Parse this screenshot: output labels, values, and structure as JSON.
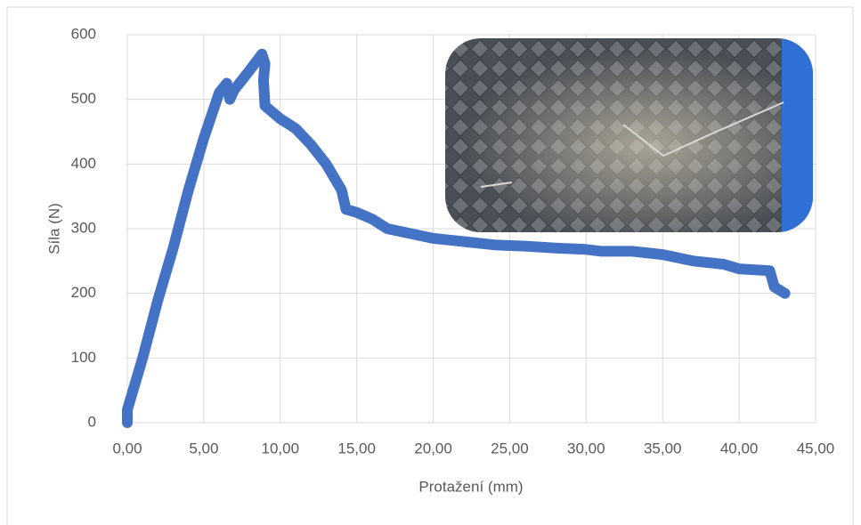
{
  "chart_data": {
    "type": "line",
    "x_label": "Protažení (mm)",
    "y_label": "Síla (N)",
    "color": "#4472c4",
    "grid": true,
    "xlim": [
      0,
      45
    ],
    "ylim": [
      0,
      600
    ],
    "xticks": [
      {
        "value": 0,
        "label": "0,00"
      },
      {
        "value": 5,
        "label": "5,00"
      },
      {
        "value": 10,
        "label": "10,00"
      },
      {
        "value": 15,
        "label": "15,00"
      },
      {
        "value": 20,
        "label": "20,00"
      },
      {
        "value": 25,
        "label": "25,00"
      },
      {
        "value": 30,
        "label": "30,00"
      },
      {
        "value": 35,
        "label": "35,00"
      },
      {
        "value": 40,
        "label": "40,00"
      },
      {
        "value": 45,
        "label": "45,00"
      }
    ],
    "yticks": [
      0,
      100,
      200,
      300,
      400,
      500,
      600
    ],
    "x": [
      0,
      0,
      1,
      2,
      3,
      4,
      5,
      6,
      6.5,
      6.7,
      7,
      8,
      8.8,
      9,
      8.9,
      9,
      10,
      11,
      12,
      13,
      14,
      14.3,
      15,
      16,
      17,
      20,
      22,
      24,
      26,
      28,
      30,
      31,
      33,
      35,
      37,
      39,
      40,
      42,
      42.3,
      43
    ],
    "values": [
      0,
      20,
      100,
      190,
      270,
      360,
      440,
      510,
      525,
      500,
      515,
      545,
      570,
      555,
      530,
      490,
      470,
      455,
      430,
      400,
      360,
      330,
      325,
      315,
      300,
      285,
      280,
      275,
      273,
      270,
      268,
      265,
      265,
      260,
      250,
      245,
      238,
      235,
      210,
      200
    ]
  }
}
